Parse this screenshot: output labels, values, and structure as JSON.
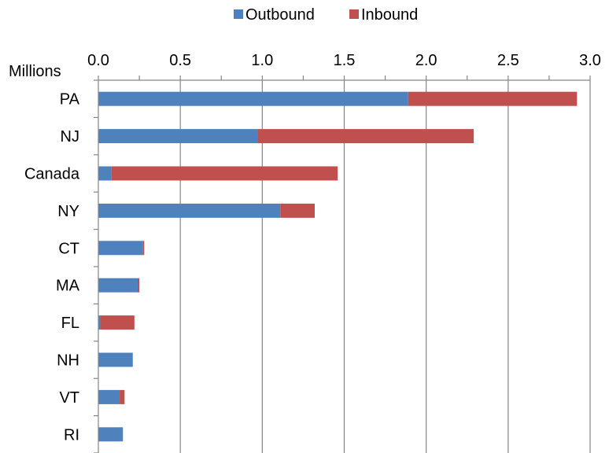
{
  "chart_data": {
    "type": "bar",
    "orientation": "horizontal",
    "stacked": true,
    "unit_label": "Millions",
    "categories": [
      "PA",
      "NJ",
      "Canada",
      "NY",
      "CT",
      "MA",
      "FL",
      "NH",
      "VT",
      "RI"
    ],
    "series": [
      {
        "name": "Outbound",
        "color": "#4F81BD",
        "values": [
          1.89,
          0.97,
          0.08,
          1.11,
          0.27,
          0.24,
          0.01,
          0.21,
          0.13,
          0.15
        ]
      },
      {
        "name": "Inbound",
        "color": "#C0504D",
        "values": [
          1.03,
          1.32,
          1.38,
          0.21,
          0.01,
          0.01,
          0.21,
          0.0,
          0.03,
          0.0
        ]
      }
    ],
    "xlim": [
      0,
      3.0
    ],
    "xticks": [
      "0.0",
      "0.5",
      "1.0",
      "1.5",
      "2.0",
      "2.5",
      "3.0"
    ],
    "xaxis_position": "top",
    "grid": "vertical",
    "legend_position": "top-center",
    "title": "",
    "xlabel": "",
    "ylabel": ""
  }
}
